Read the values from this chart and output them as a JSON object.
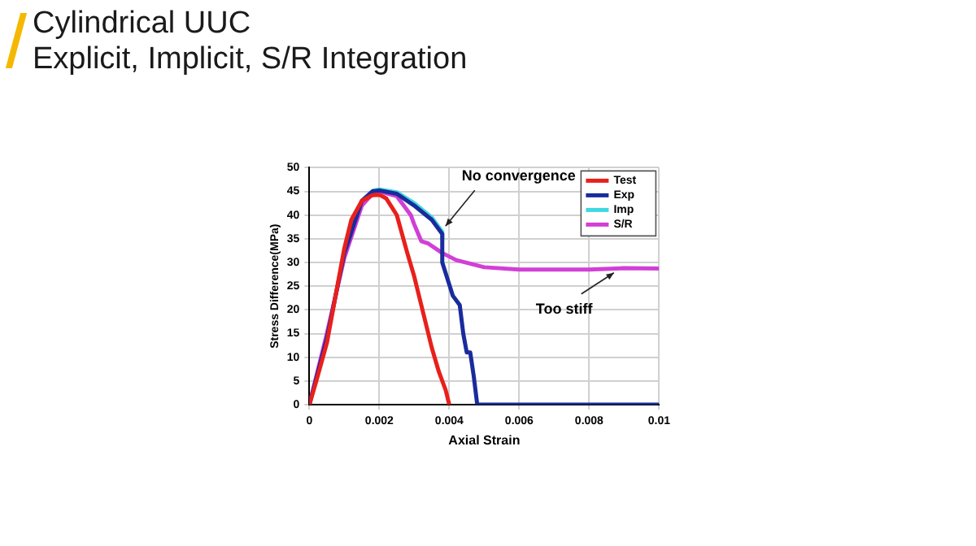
{
  "chart_data": {
    "type": "line",
    "title": "Cylindrical UUC",
    "subtitle": "Explicit, Implicit, S/R Integration",
    "xlabel": "Axial Strain",
    "ylabel": "Stress Difference(MPa)",
    "xlim": [
      0,
      0.01
    ],
    "xticks": [
      0,
      0.002,
      0.004,
      0.006,
      0.008,
      0.01
    ],
    "ylim": [
      0,
      50
    ],
    "yticks": [
      0,
      5,
      10,
      15,
      20,
      25,
      30,
      35,
      40,
      45,
      50
    ],
    "grid": true,
    "legend": "top right",
    "marker": "none",
    "series": [
      {
        "name": "Test",
        "color": "#e8201c",
        "x": [
          0,
          0.0002,
          0.0005,
          0.0008,
          0.001,
          0.0012,
          0.0015,
          0.0018,
          0.002,
          0.0022,
          0.0025,
          0.0028,
          0.003,
          0.0033,
          0.0035,
          0.0037,
          0.0039,
          0.004
        ],
        "values": [
          0,
          5,
          13,
          25,
          33,
          39,
          43,
          44.2,
          44.3,
          43.5,
          40,
          32,
          27,
          18,
          12,
          7,
          3,
          0
        ]
      },
      {
        "name": "Exp",
        "color": "#1a2b9c",
        "x": [
          0,
          0.0005,
          0.001,
          0.0015,
          0.0018,
          0.002,
          0.0025,
          0.003,
          0.0035,
          0.0038,
          0.0038,
          0.0041,
          0.0043,
          0.0044,
          0.0045,
          0.0046,
          0.0047,
          0.0048,
          0.01
        ],
        "values": [
          0,
          14,
          32,
          43,
          45,
          45.2,
          44.5,
          42,
          39,
          36,
          30,
          23,
          21,
          15,
          11,
          11,
          6,
          0,
          0
        ]
      },
      {
        "name": "Imp",
        "color": "#3fd8e0",
        "x": [
          0.0018,
          0.002,
          0.0025,
          0.003,
          0.0035,
          0.0038,
          0.0038
        ],
        "values": [
          45.1,
          45.4,
          44.8,
          42.5,
          39.5,
          36.5,
          35
        ]
      },
      {
        "name": "S/R",
        "color": "#d23fd6",
        "x": [
          0,
          0.0005,
          0.001,
          0.0015,
          0.0018,
          0.002,
          0.0025,
          0.0029,
          0.003,
          0.0032,
          0.0034,
          0.0038,
          0.0042,
          0.005,
          0.006,
          0.008,
          0.009,
          0.01
        ],
        "values": [
          0,
          15,
          31,
          42,
          44.5,
          45,
          44,
          40,
          38,
          34.5,
          34,
          32,
          30.5,
          29,
          28.5,
          28.5,
          28.8,
          28.7
        ]
      }
    ],
    "annotations": [
      {
        "text": "No convergence",
        "x": 0.0038,
        "y": 37
      },
      {
        "text": "Too stiff",
        "x": 0.0088,
        "y": 28.5
      }
    ]
  }
}
